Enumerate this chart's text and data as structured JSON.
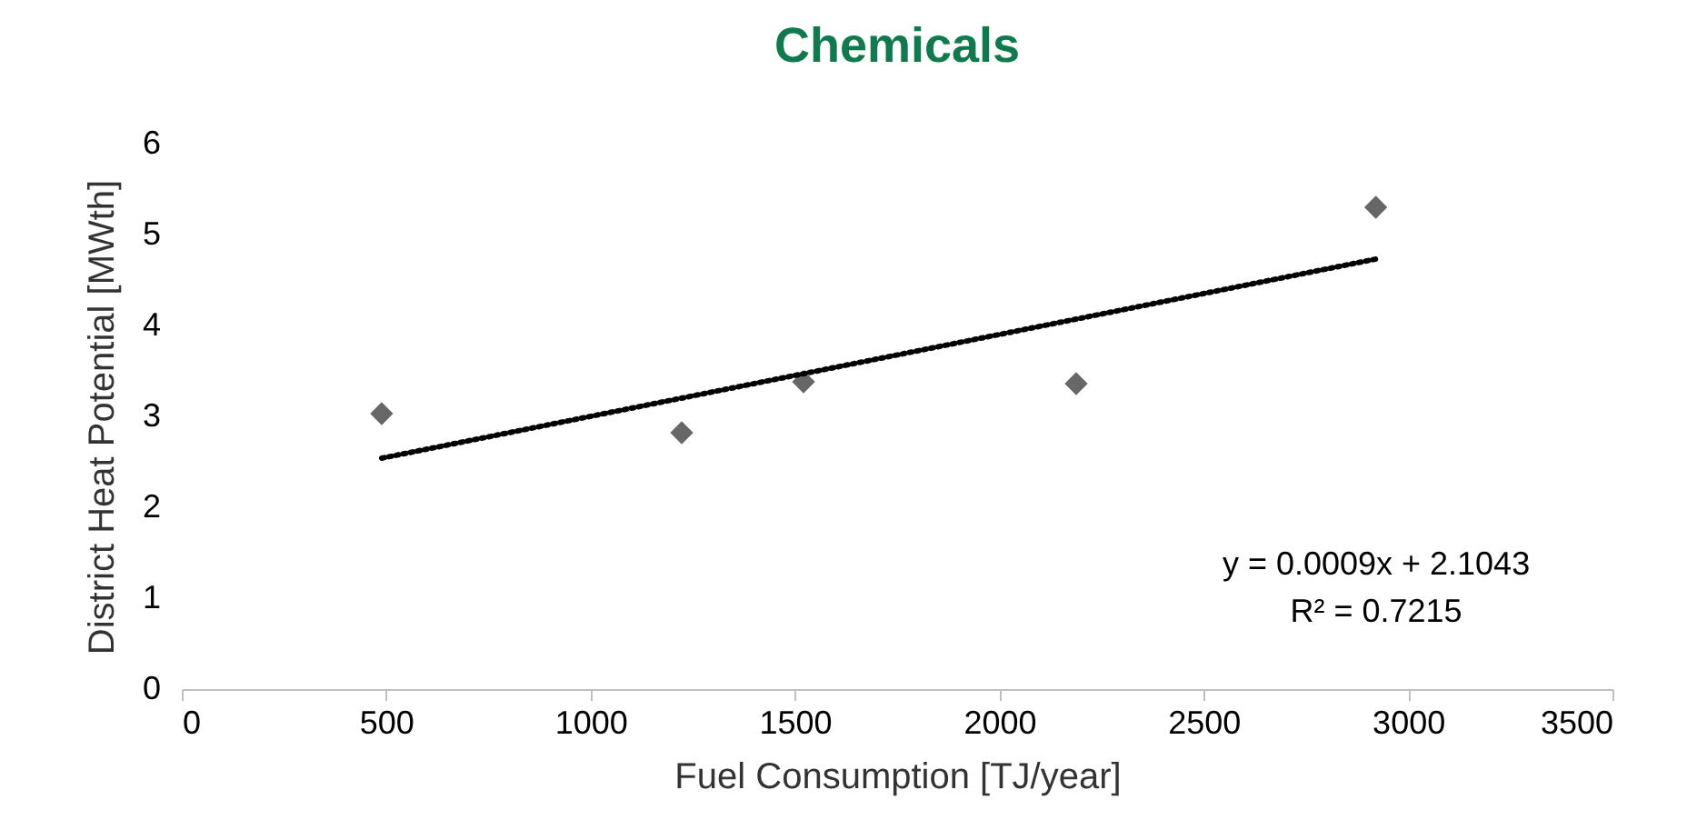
{
  "chart_data": {
    "type": "scatter",
    "title": "Chemicals",
    "xlabel": "Fuel Consumption [TJ/year]",
    "ylabel": "District Heat Potential [MWth]",
    "series": [
      {
        "color": "#676767",
        "marker": "diamond",
        "x": [
          489,
          1223,
          1521,
          2188,
          2921
        ],
        "values": [
          3.03,
          2.82,
          3.38,
          3.36,
          5.3
        ]
      },
      {
        "type": "line",
        "color": "#000000",
        "line_style": "dotted",
        "marker": "none",
        "x": [
          489,
          2921
        ],
        "values": [
          2.54,
          4.73
        ]
      }
    ],
    "xlim": [
      0,
      3500
    ],
    "xticks": [
      0,
      500,
      1000,
      1500,
      2000,
      2500,
      3000,
      3500
    ],
    "ylim": [
      0,
      6
    ],
    "yticks": [
      0,
      1,
      2,
      3,
      4,
      5,
      6
    ],
    "annotations": [
      "y = 0.0009x + 2.1043",
      "R² = 0.7215"
    ],
    "grid": false
  }
}
